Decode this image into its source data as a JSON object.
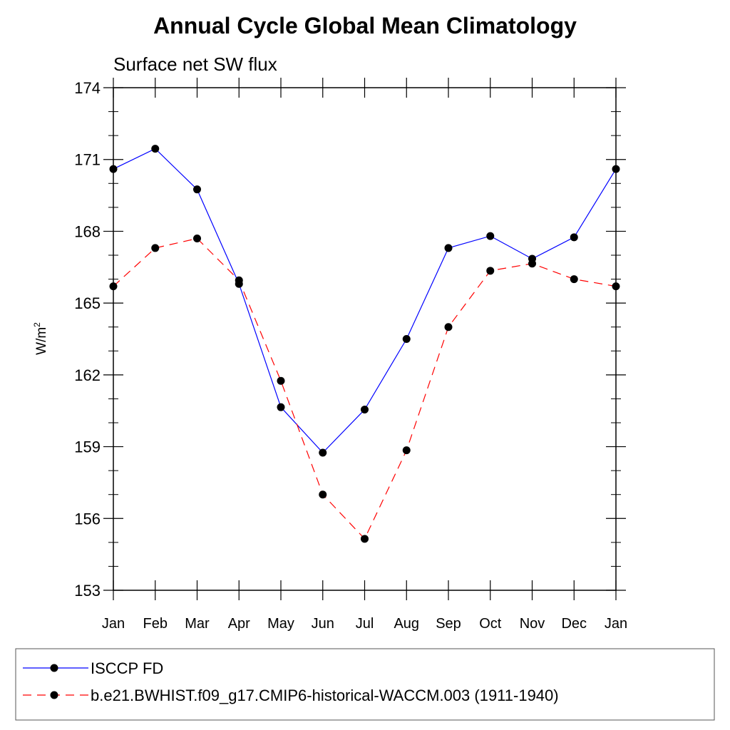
{
  "chart_data": {
    "type": "line",
    "title": "Annual Cycle Global Mean Climatology",
    "subtitle": "Surface net SW flux",
    "ylabel_base": "W/m",
    "ylabel_sup": "2",
    "xlabel": "",
    "categories": [
      "Jan",
      "Feb",
      "Mar",
      "Apr",
      "May",
      "Jun",
      "Jul",
      "Aug",
      "Sep",
      "Oct",
      "Nov",
      "Dec",
      "Jan"
    ],
    "ylim": [
      153,
      174
    ],
    "yticks": [
      153,
      156,
      159,
      162,
      165,
      168,
      171,
      174
    ],
    "series": [
      {
        "name": "ISCCP FD",
        "color": "#0000ff",
        "dash": "solid",
        "marker": "filled-circle",
        "values": [
          170.6,
          171.45,
          169.75,
          165.8,
          160.65,
          158.75,
          160.55,
          163.5,
          167.3,
          167.8,
          166.85,
          167.75,
          170.6
        ]
      },
      {
        "name": "b.e21.BWHIST.f09_g17.CMIP6-historical-WACCM.003 (1911-1940)",
        "color": "#ff0000",
        "dash": "dashed",
        "marker": "filled-circle",
        "values": [
          165.7,
          167.3,
          167.7,
          165.95,
          161.75,
          157.0,
          155.15,
          158.85,
          164.0,
          166.35,
          166.65,
          166.0,
          165.7
        ]
      }
    ],
    "grid": false,
    "legend_position": "bottom"
  }
}
